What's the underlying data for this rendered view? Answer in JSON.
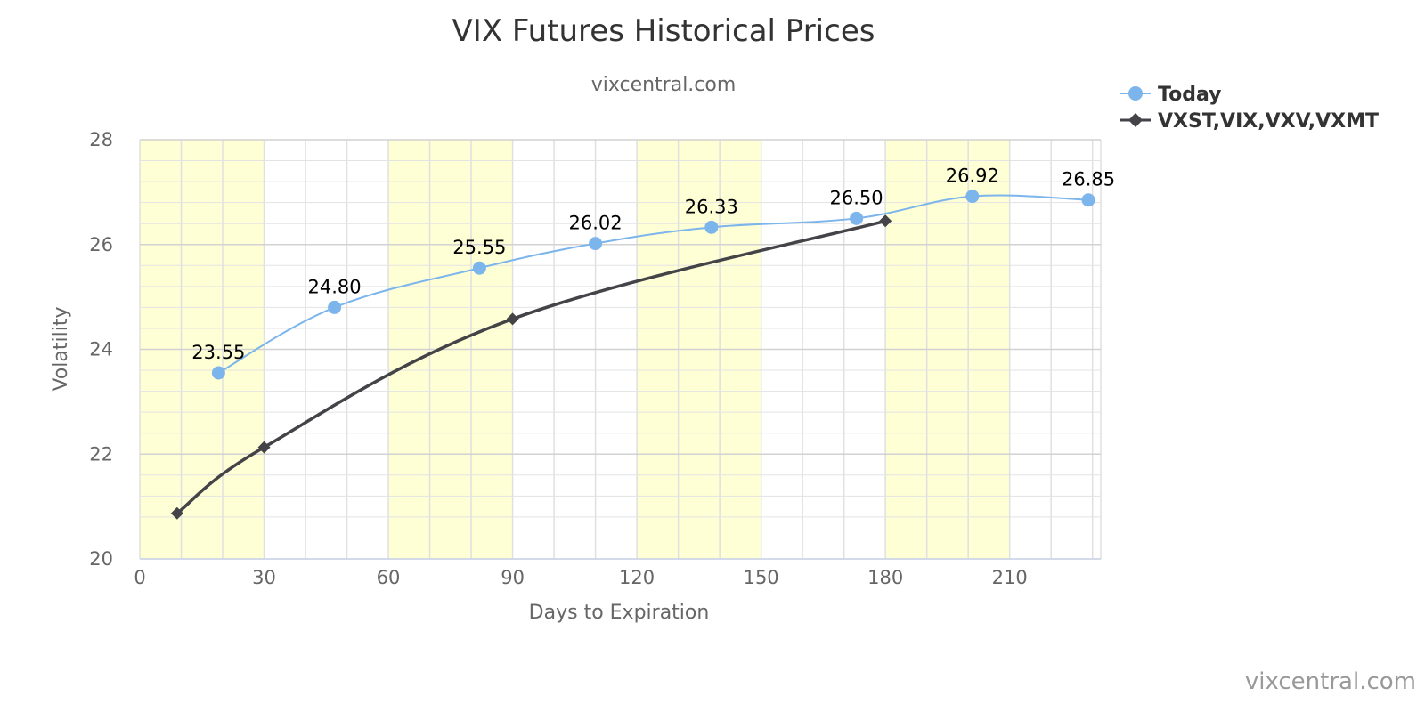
{
  "chart_data": {
    "type": "line",
    "title": "VIX Futures Historical Prices",
    "subtitle": "vixcentral.com",
    "xlabel": "Days to Expiration",
    "ylabel": "Volatility",
    "xlim": [
      0,
      232
    ],
    "ylim": [
      20,
      28
    ],
    "x_ticks": [
      0,
      30,
      60,
      90,
      120,
      150,
      180,
      210
    ],
    "y_ticks": [
      20,
      22,
      24,
      26,
      28
    ],
    "x_minor_step": 10,
    "y_minor_step": 0.4,
    "shaded_x_bands": [
      [
        0,
        30
      ],
      [
        60,
        90
      ],
      [
        120,
        150
      ],
      [
        180,
        210
      ]
    ],
    "band_color": "#ffffd5",
    "grid": true,
    "legend_position": "top-right",
    "series": [
      {
        "name": "Today",
        "color": "#7cb5ec",
        "marker": "circle",
        "show_labels": true,
        "points": [
          {
            "x": 19,
            "y": 23.55,
            "label": "23.55"
          },
          {
            "x": 47,
            "y": 24.8,
            "label": "24.80"
          },
          {
            "x": 82,
            "y": 25.55,
            "label": "25.55"
          },
          {
            "x": 110,
            "y": 26.02,
            "label": "26.02"
          },
          {
            "x": 138,
            "y": 26.33,
            "label": "26.33"
          },
          {
            "x": 173,
            "y": 26.5,
            "label": "26.50"
          },
          {
            "x": 201,
            "y": 26.92,
            "label": "26.92"
          },
          {
            "x": 229,
            "y": 26.85,
            "label": "26.85"
          }
        ]
      },
      {
        "name": "VXST,VIX,VXV,VXMT",
        "color": "#434348",
        "marker": "diamond",
        "show_labels": false,
        "points": [
          {
            "x": 9,
            "y": 20.87
          },
          {
            "x": 30,
            "y": 22.13
          },
          {
            "x": 90,
            "y": 24.58
          },
          {
            "x": 180,
            "y": 26.45
          }
        ]
      }
    ]
  },
  "credit": "vixcentral.com"
}
